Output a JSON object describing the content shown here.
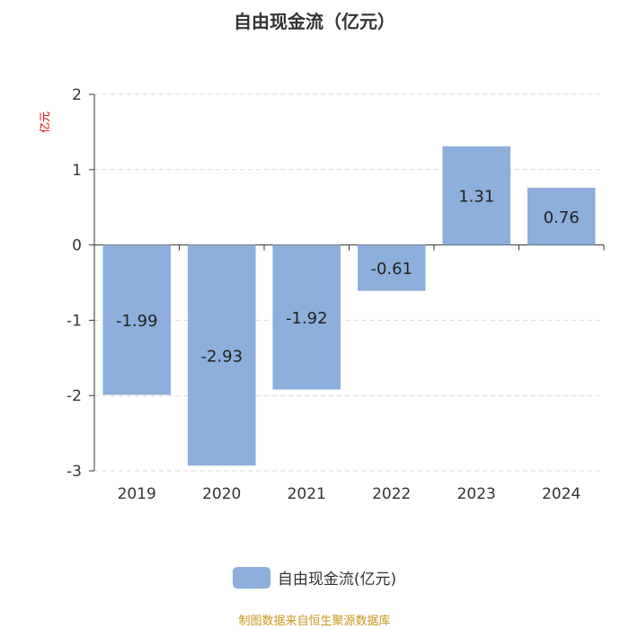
{
  "chart_data": {
    "type": "bar",
    "title": "自由现金流（亿元）",
    "ylabel": "亿元",
    "categories": [
      "2019",
      "2020",
      "2021",
      "2022",
      "2023",
      "2024"
    ],
    "series": [
      {
        "name": "自由现金流(亿元)",
        "values": [
          -1.99,
          -2.93,
          -1.92,
          -0.61,
          1.31,
          0.76
        ]
      }
    ],
    "data_labels": [
      "-1.99",
      "-2.93",
      "-1.92",
      "-0.61",
      "1.31",
      "0.76"
    ],
    "y_ticks": [
      "2",
      "1",
      "0",
      "-1",
      "-2",
      "-3"
    ],
    "ylim": [
      -3,
      2
    ],
    "grid": true,
    "legend_position": "bottom-center",
    "bar_color": "#8eaedb"
  },
  "source_text": "制图数据来自恒生聚源数据库"
}
